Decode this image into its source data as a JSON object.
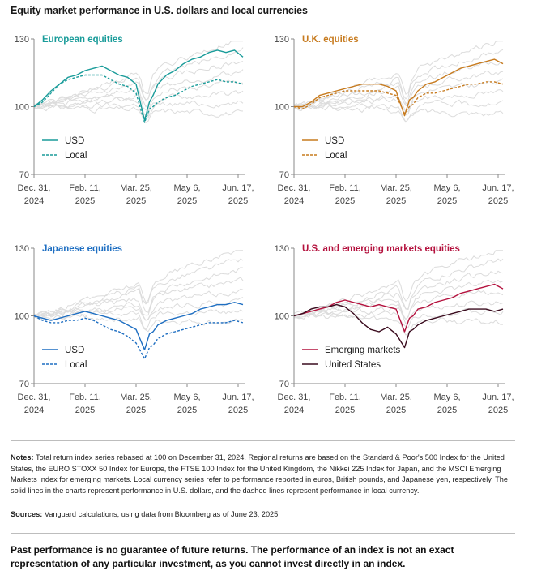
{
  "page_title": "Equity market performance in U.S. dollars and local currencies",
  "notes_label": "Notes:",
  "notes_text": " Total return index series rebased at 100 on December 31, 2024. Regional returns are based on the Standard & Poor's 500 Index for the United States, the EURO STOXX 50 Index for Europe, the FTSE 100 Index for the United Kingdom, the Nikkei 225 Index for Japan, and the MSCI Emerging Markets Index for emerging markets. Local currency series refer to performance reported in euros, British pounds, and Japanese yen, respectively. The solid lines in the charts represent performance in U.S. dollars, and the dashed lines represent performance in local currency.",
  "sources_label": "Sources:",
  "sources_text": " Vanguard calculations, using data from Bloomberg as of June 23, 2025.",
  "disclaimer": "Past performance is no guarantee of future returns. The performance of an index is not an exact representation of any particular investment, as you cannot invest directly in an index.",
  "colors": {
    "european": "#1a9c9a",
    "uk": "#c77b1f",
    "japan": "#1f6fc2",
    "em": "#b4123e",
    "us": "#3a0b1e",
    "background_series": "#dcdcdc",
    "axis": "#8a8a8a"
  },
  "chart_data": [
    {
      "type": "line",
      "title": "European equities",
      "color_key": "european",
      "x_tick_labels": [
        [
          "Dec. 31,",
          "2024"
        ],
        [
          "Feb. 11,",
          "2025"
        ],
        [
          "Mar. 25,",
          "2025"
        ],
        [
          "May 6,",
          "2025"
        ],
        [
          "Jun. 17,",
          "2025"
        ]
      ],
      "y_ticks": [
        70,
        100,
        130
      ],
      "ylim": [
        70,
        130
      ],
      "x_range_days": [
        0,
        174
      ],
      "series": [
        {
          "name": "USD",
          "style": "solid",
          "x": [
            0,
            7,
            14,
            21,
            28,
            35,
            42,
            49,
            56,
            63,
            70,
            77,
            84,
            91,
            95,
            98,
            102,
            109,
            116,
            123,
            130,
            137,
            144,
            151,
            158,
            165,
            172
          ],
          "y": [
            100,
            103,
            107,
            110,
            113,
            114,
            116,
            117,
            118,
            116,
            114,
            113,
            110,
            94,
            102,
            105,
            110,
            114,
            116,
            119,
            121,
            122,
            124,
            125,
            124,
            125,
            122
          ]
        },
        {
          "name": "Local",
          "style": "dashed",
          "x": [
            0,
            7,
            14,
            21,
            28,
            35,
            42,
            49,
            56,
            63,
            70,
            77,
            84,
            91,
            95,
            98,
            102,
            109,
            116,
            123,
            130,
            137,
            144,
            151,
            158,
            165,
            172
          ],
          "y": [
            100,
            102,
            106,
            110,
            112,
            113,
            114,
            114,
            114,
            112,
            110,
            109,
            106,
            93,
            99,
            100,
            102,
            104,
            105,
            107,
            109,
            110,
            111,
            112,
            111,
            111,
            110
          ]
        }
      ]
    },
    {
      "type": "line",
      "title": "U.K. equities",
      "color_key": "uk",
      "x_tick_labels": [
        [
          "Dec. 31,",
          "2024"
        ],
        [
          "Feb. 11,",
          "2025"
        ],
        [
          "Mar. 25,",
          "2025"
        ],
        [
          "May 6,",
          "2025"
        ],
        [
          "Jun. 17,",
          "2025"
        ]
      ],
      "y_ticks": [
        70,
        100,
        130
      ],
      "ylim": [
        70,
        130
      ],
      "x_range_days": [
        0,
        174
      ],
      "series": [
        {
          "name": "USD",
          "style": "solid",
          "x": [
            0,
            7,
            14,
            21,
            28,
            35,
            42,
            49,
            56,
            63,
            70,
            77,
            84,
            91,
            95,
            98,
            102,
            109,
            116,
            123,
            130,
            137,
            144,
            151,
            158,
            165,
            172
          ],
          "y": [
            100,
            100,
            102,
            105,
            106,
            107,
            108,
            109,
            110,
            110,
            110,
            109,
            107,
            96,
            103,
            104,
            107,
            110,
            111,
            113,
            115,
            117,
            118,
            119,
            120,
            121,
            119
          ]
        },
        {
          "name": "Local",
          "style": "dashed",
          "x": [
            0,
            7,
            14,
            21,
            28,
            35,
            42,
            49,
            56,
            63,
            70,
            77,
            84,
            91,
            95,
            98,
            102,
            109,
            116,
            123,
            130,
            137,
            144,
            151,
            158,
            165,
            172
          ],
          "y": [
            100,
            99,
            101,
            104,
            105,
            106,
            107,
            107,
            107,
            107,
            107,
            106,
            105,
            97,
            100,
            101,
            104,
            106,
            106,
            107,
            108,
            109,
            110,
            110,
            111,
            111,
            110
          ]
        }
      ]
    },
    {
      "type": "line",
      "title": "Japanese equities",
      "color_key": "japan",
      "x_tick_labels": [
        [
          "Dec. 31,",
          "2024"
        ],
        [
          "Feb. 11,",
          "2025"
        ],
        [
          "Mar. 25,",
          "2025"
        ],
        [
          "May 6,",
          "2025"
        ],
        [
          "Jun. 17,",
          "2025"
        ]
      ],
      "y_ticks": [
        70,
        100,
        130
      ],
      "ylim": [
        70,
        130
      ],
      "x_range_days": [
        0,
        174
      ],
      "series": [
        {
          "name": "USD",
          "style": "solid",
          "x": [
            0,
            7,
            14,
            21,
            28,
            35,
            42,
            49,
            56,
            63,
            70,
            77,
            84,
            91,
            95,
            98,
            102,
            109,
            116,
            123,
            130,
            137,
            144,
            151,
            158,
            165,
            172
          ],
          "y": [
            100,
            99,
            98,
            99,
            100,
            101,
            102,
            101,
            100,
            99,
            98,
            96,
            94,
            85,
            92,
            93,
            96,
            98,
            99,
            100,
            101,
            103,
            104,
            105,
            105,
            106,
            105
          ]
        },
        {
          "name": "Local",
          "style": "dashed",
          "x": [
            0,
            7,
            14,
            21,
            28,
            35,
            42,
            49,
            56,
            63,
            70,
            77,
            84,
            91,
            95,
            98,
            102,
            109,
            116,
            123,
            130,
            137,
            144,
            151,
            158,
            165,
            172
          ],
          "y": [
            100,
            98,
            97,
            97,
            98,
            98,
            99,
            98,
            96,
            94,
            93,
            91,
            88,
            81,
            86,
            87,
            90,
            92,
            93,
            94,
            95,
            96,
            97,
            97,
            97,
            98,
            97
          ]
        }
      ]
    },
    {
      "type": "line",
      "title": "U.S. and emerging markets equities",
      "color_key": "em",
      "x_tick_labels": [
        [
          "Dec. 31,",
          "2024"
        ],
        [
          "Feb. 11,",
          "2025"
        ],
        [
          "Mar. 25,",
          "2025"
        ],
        [
          "May 6,",
          "2025"
        ],
        [
          "Jun. 17,",
          "2025"
        ]
      ],
      "y_ticks": [
        70,
        100,
        130
      ],
      "ylim": [
        70,
        130
      ],
      "x_range_days": [
        0,
        174
      ],
      "series": [
        {
          "name": "Emerging markets",
          "style": "solid",
          "color_key": "em",
          "x": [
            0,
            7,
            14,
            21,
            28,
            35,
            42,
            49,
            56,
            63,
            70,
            77,
            84,
            91,
            95,
            98,
            102,
            109,
            116,
            123,
            130,
            137,
            144,
            151,
            158,
            165,
            172
          ],
          "y": [
            100,
            101,
            102,
            103,
            104,
            106,
            107,
            106,
            105,
            104,
            105,
            104,
            103,
            93,
            99,
            100,
            103,
            104,
            106,
            107,
            108,
            110,
            111,
            112,
            113,
            114,
            112
          ]
        },
        {
          "name": "United States",
          "style": "solid",
          "color_key": "us",
          "x": [
            0,
            7,
            14,
            21,
            28,
            35,
            42,
            49,
            56,
            63,
            70,
            77,
            84,
            91,
            95,
            98,
            102,
            109,
            116,
            123,
            130,
            137,
            144,
            151,
            158,
            165,
            172
          ],
          "y": [
            100,
            101,
            103,
            104,
            104,
            105,
            104,
            101,
            97,
            94,
            93,
            95,
            92,
            86,
            93,
            94,
            96,
            98,
            99,
            100,
            101,
            102,
            103,
            103,
            103,
            102,
            103
          ]
        }
      ]
    }
  ]
}
